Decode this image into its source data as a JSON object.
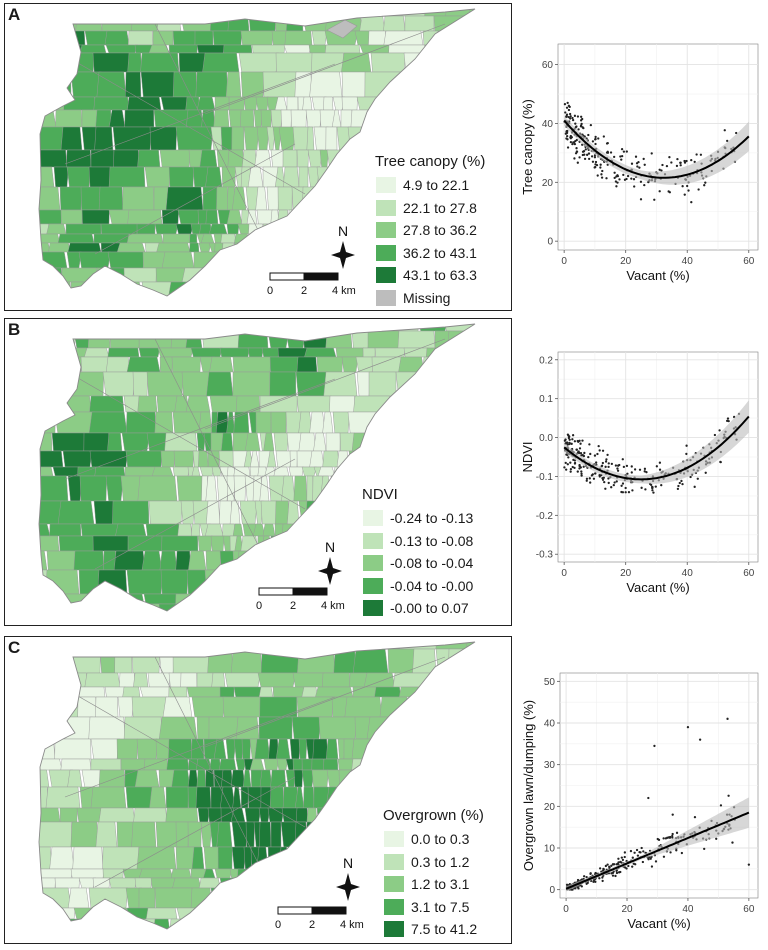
{
  "panels": [
    {
      "letter": "A",
      "legend_title": "Tree canopy (%)",
      "legend": [
        {
          "label": "4.9 to 22.1",
          "color": "#e8f5e4"
        },
        {
          "label": "22.1 to 27.8",
          "color": "#bfe3b8"
        },
        {
          "label": "27.8 to 36.2",
          "color": "#8ccc86"
        },
        {
          "label": "36.2 to 43.1",
          "color": "#4dac59"
        },
        {
          "label": "43.1 to 63.3",
          "color": "#1d7a38"
        },
        {
          "label": "Missing",
          "color": "#bdbdbd"
        }
      ],
      "north_label": "N",
      "scale_ticks": [
        "0",
        "2",
        "4 km"
      ]
    },
    {
      "letter": "B",
      "legend_title": "NDVI",
      "legend": [
        {
          "label": "-0.24 to -0.13",
          "color": "#e8f5e4"
        },
        {
          "label": "-0.13 to -0.08",
          "color": "#bfe3b8"
        },
        {
          "label": "-0.08 to -0.04",
          "color": "#8ccc86"
        },
        {
          "label": "-0.04 to -0.00",
          "color": "#4dac59"
        },
        {
          "label": "-0.00 to 0.07",
          "color": "#1d7a38"
        }
      ],
      "north_label": "N",
      "scale_ticks": [
        "0",
        "2",
        "4 km"
      ]
    },
    {
      "letter": "C",
      "legend_title": "Overgrown (%)",
      "legend": [
        {
          "label": "0.0 to 0.3",
          "color": "#e8f5e4"
        },
        {
          "label": "0.3 to 1.2",
          "color": "#bfe3b8"
        },
        {
          "label": "1.2 to 3.1",
          "color": "#8ccc86"
        },
        {
          "label": "3.1 to 7.5",
          "color": "#4dac59"
        },
        {
          "label": "7.5 to 41.2",
          "color": "#1d7a38"
        }
      ],
      "north_label": "N",
      "scale_ticks": [
        "0",
        "2",
        "4 km"
      ]
    }
  ],
  "chart_data": [
    {
      "type": "scatter",
      "xlabel": "Vacant (%)",
      "ylabel": "Tree canopy (%)",
      "xlim": [
        -2,
        63
      ],
      "ylim": [
        -3,
        67
      ],
      "xticks": [
        0,
        20,
        40,
        60
      ],
      "yticks": [
        0,
        20,
        40,
        60
      ],
      "fit": {
        "type": "quadratic",
        "a": 0.0185,
        "b": -1.2,
        "c": 41,
        "se_base": 1.5,
        "se_slope": 0.1
      }
    },
    {
      "type": "scatter",
      "xlabel": "Vacant (%)",
      "ylabel": "NDVI",
      "xlim": [
        -2,
        63
      ],
      "ylim": [
        -0.32,
        0.22
      ],
      "xticks": [
        0,
        20,
        40,
        60
      ],
      "yticks": [
        -0.3,
        -0.2,
        -0.1,
        0.0,
        0.1,
        0.2
      ],
      "fit": {
        "type": "quadratic",
        "a": 0.000132,
        "b": -0.0066,
        "c": -0.025,
        "se_base": 0.01,
        "se_slope": 0.0009
      }
    },
    {
      "type": "scatter",
      "xlabel": "Vacant (%)",
      "ylabel": "Overgrown lawn/dumping (%)",
      "xlim": [
        -2,
        63
      ],
      "ylim": [
        -2,
        52
      ],
      "xticks": [
        0,
        20,
        40,
        60
      ],
      "yticks": [
        0,
        10,
        20,
        30,
        40,
        50
      ],
      "fit": {
        "type": "quadratic",
        "a": 0.0,
        "b": 0.305,
        "c": 0.2,
        "se_base": 0.5,
        "se_slope": 0.09
      }
    }
  ]
}
